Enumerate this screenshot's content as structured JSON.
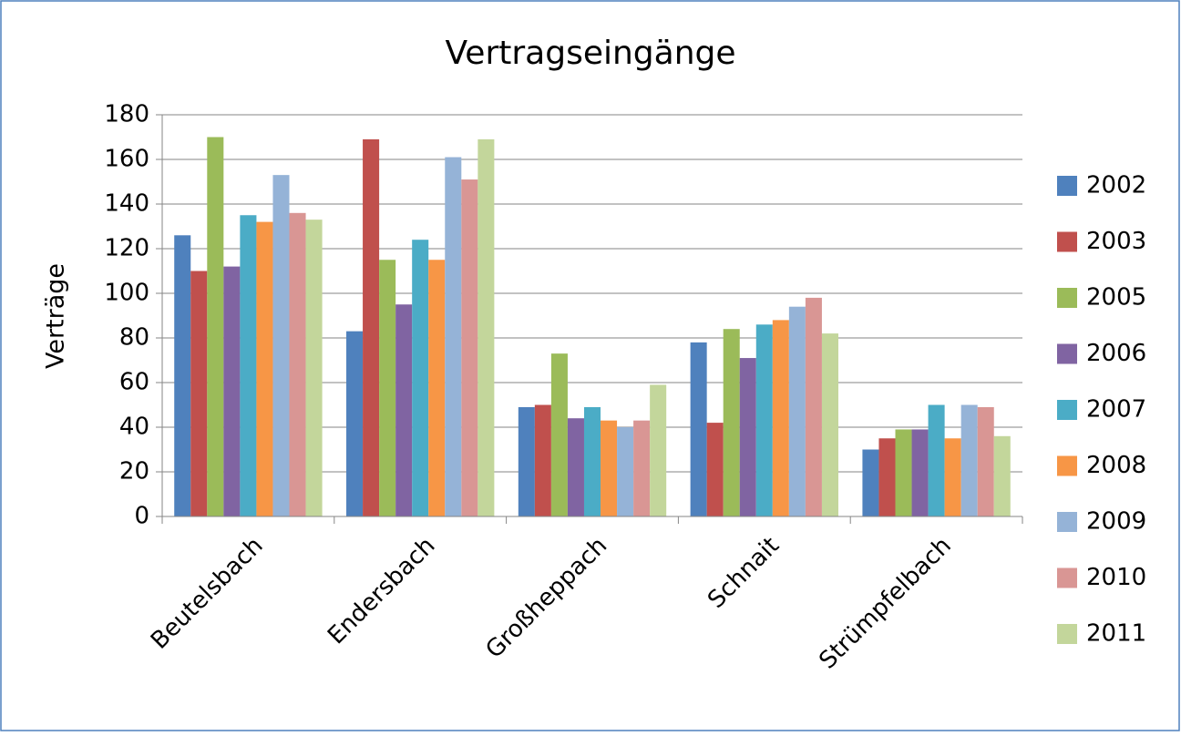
{
  "chart_data": {
    "type": "bar",
    "title": "Vertragseingänge",
    "y_label": "Verträge",
    "categories": [
      "Beutelsbach",
      "Endersbach",
      "Großheppach",
      "Schnait",
      "Strümpfelbach"
    ],
    "series": [
      {
        "name": "2002",
        "color": "#4F81BD",
        "values": [
          126,
          83,
          49,
          78,
          30
        ]
      },
      {
        "name": "2003",
        "color": "#C0504D",
        "values": [
          110,
          169,
          50,
          42,
          35
        ]
      },
      {
        "name": "2005",
        "color": "#9BBB59",
        "values": [
          170,
          115,
          73,
          84,
          39
        ]
      },
      {
        "name": "2006",
        "color": "#8064A2",
        "values": [
          112,
          95,
          44,
          71,
          39
        ]
      },
      {
        "name": "2007",
        "color": "#4BACC6",
        "values": [
          135,
          124,
          49,
          86,
          50
        ]
      },
      {
        "name": "2008",
        "color": "#F79646",
        "values": [
          132,
          115,
          43,
          88,
          35
        ]
      },
      {
        "name": "2009",
        "color": "#95B3D7",
        "values": [
          153,
          161,
          40,
          94,
          50
        ]
      },
      {
        "name": "2010",
        "color": "#D99694",
        "values": [
          136,
          151,
          43,
          98,
          49
        ]
      },
      {
        "name": "2011",
        "color": "#C3D69B",
        "values": [
          133,
          169,
          59,
          82,
          36
        ]
      }
    ],
    "ylim": [
      0,
      180
    ],
    "yticks": [
      0,
      20,
      40,
      60,
      80,
      100,
      120,
      140,
      160,
      180
    ],
    "grid": true,
    "legend": "right"
  }
}
